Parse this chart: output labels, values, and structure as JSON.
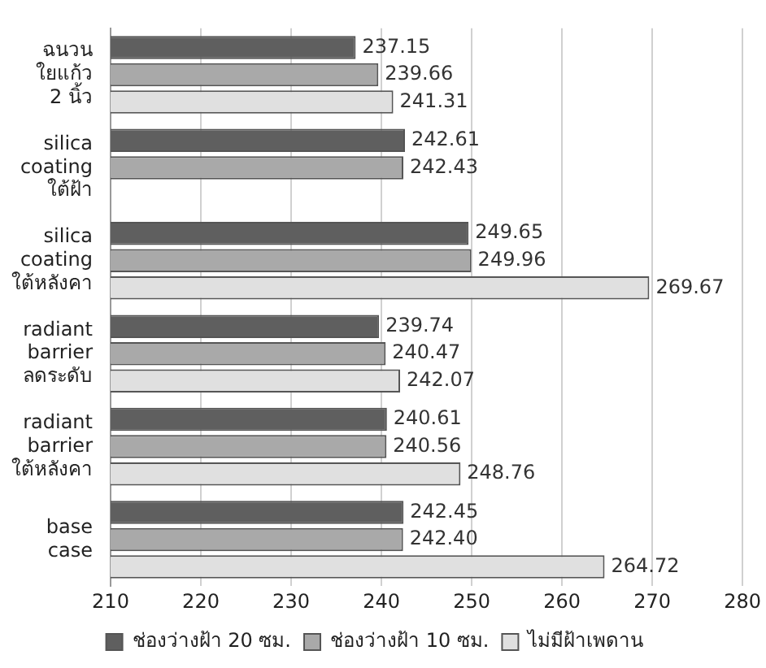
{
  "chart_data": {
    "type": "bar",
    "orientation": "horizontal",
    "categories": [
      "ฉนวน\nใยแก้ว\n2 นิ้ว",
      "silica\ncoating\nใต้ฝ้า",
      "silica\ncoating\nใต้หลังคา",
      "radiant\nbarrier\nลดระดับ",
      "radiant\nbarrier\nใต้หลังคา",
      "base\ncase"
    ],
    "series": [
      {
        "name": "ช่องว่างฝ้า 20 ซม.",
        "color": "#5f5f5f",
        "values": [
          237.15,
          242.61,
          249.65,
          239.74,
          240.61,
          242.45
        ]
      },
      {
        "name": "ช่องว่างฝ้า 10 ซม.",
        "color": "#a9a9a9",
        "values": [
          239.66,
          242.43,
          249.96,
          240.47,
          240.56,
          242.4
        ],
        "value_labels": [
          "239.66",
          "242.43",
          "249.96",
          "240.47",
          "240.56",
          "242.40"
        ]
      },
      {
        "name": "ไม่มีฝ้าเพดาน",
        "color": "#e0e0e0",
        "values": [
          241.31,
          null,
          269.67,
          242.07,
          248.76,
          264.72
        ]
      }
    ],
    "xlim": [
      210,
      280
    ],
    "xticks": [
      210,
      220,
      230,
      240,
      250,
      260,
      270,
      280
    ],
    "grid": "x",
    "legend": "bottom",
    "data_labels": true
  }
}
